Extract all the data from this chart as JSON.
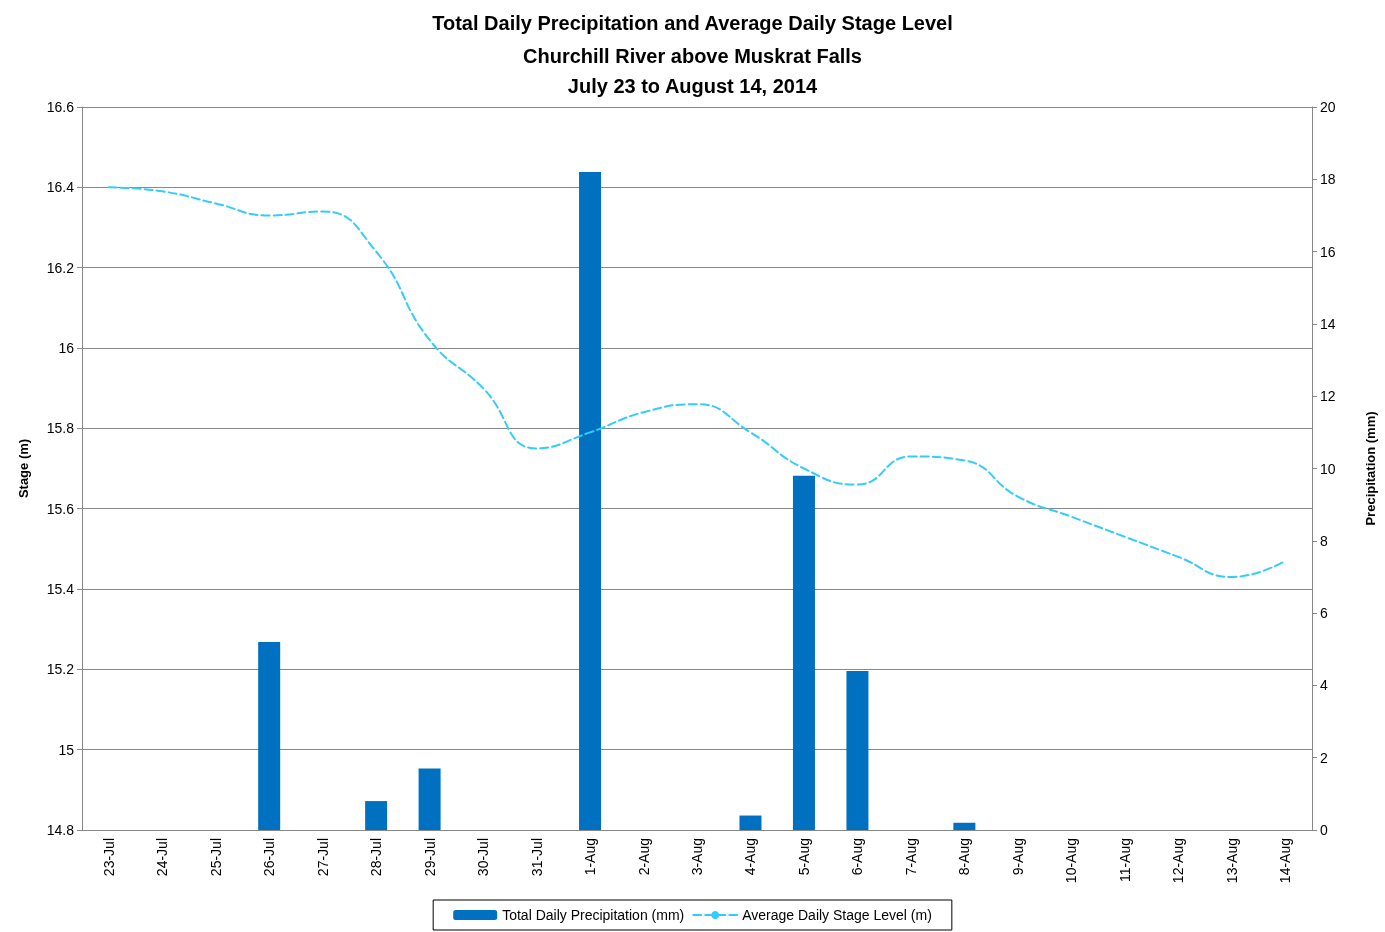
{
  "chart_data": {
    "type": "bar",
    "title": "Total Daily Precipitation and Average Daily Stage Level",
    "subtitle": "Churchill River above Muskrat Falls\nJuly 23 to August 14, 2014",
    "ylabel": "Stage (m)",
    "y2label": "Precipitation (mm)",
    "categories": [
      "23-Jul",
      "24-Jul",
      "25-Jul",
      "26-Jul",
      "27-Jul",
      "28-Jul",
      "29-Jul",
      "30-Jul",
      "31-Jul",
      "1-Aug",
      "2-Aug",
      "3-Aug",
      "4-Aug",
      "5-Aug",
      "6-Aug",
      "7-Aug",
      "8-Aug",
      "9-Aug",
      "10-Aug",
      "11-Aug",
      "12-Aug",
      "13-Aug",
      "14-Aug"
    ],
    "series": [
      {
        "name": "Total Daily Precipitation (mm)",
        "axis": "y2",
        "color": "#0070c0",
        "values": [
          0,
          0,
          0,
          5.2,
          0,
          0.8,
          1.7,
          0,
          0,
          18.2,
          0,
          0,
          0.4,
          9.8,
          4.4,
          0,
          0.2,
          0,
          0,
          0,
          0,
          0,
          0
        ]
      },
      {
        "name": "Average Daily Stage Level (m)",
        "type": "line",
        "line_style": "dashed",
        "marker": "none",
        "color": "#33ccff",
        "values": [
          16.4,
          16.39,
          16.36,
          16.33,
          16.34,
          16.24,
          16.02,
          15.9,
          15.75,
          15.79,
          15.84,
          15.86,
          15.79,
          15.7,
          15.66,
          15.73,
          15.72,
          15.63,
          15.58,
          15.53,
          15.48,
          15.43,
          15.47
        ]
      }
    ],
    "ylim": [
      14.8,
      16.6
    ],
    "yticks": [
      14.8,
      15,
      15.2,
      15.4,
      15.6,
      15.8,
      16,
      16.2,
      16.4,
      16.6
    ],
    "y2lim": [
      0,
      20
    ],
    "y2ticks": [
      0,
      2,
      4,
      6,
      8,
      10,
      12,
      14,
      16,
      18,
      20
    ],
    "grid": "y",
    "legend": "bottom"
  }
}
